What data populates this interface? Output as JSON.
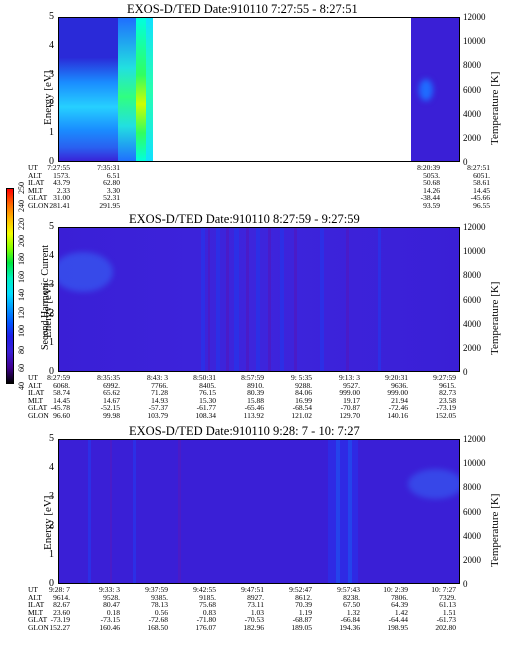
{
  "colorbar": {
    "label": "Second Harmonic Current",
    "ticks": [
      "40",
      "60",
      "80",
      "100",
      "120",
      "140",
      "160",
      "180",
      "200",
      "220",
      "240",
      "250"
    ]
  },
  "chart_data": [
    {
      "type": "heatmap",
      "title": "EXOS-D/TED   Date:910110  7:27:55 - 8:27:51",
      "ylabel": "Energy [eV]",
      "y2label": "Temperature [K]",
      "ylim": [
        0,
        5
      ],
      "y2lim": [
        0,
        12000
      ],
      "yticks": [
        "0",
        "1",
        "2",
        "3",
        "4",
        "5"
      ],
      "y2ticks": [
        "0",
        "2000",
        "4000",
        "6000",
        "8000",
        "10000",
        "12000"
      ],
      "ephemeris": {
        "labels": [
          "UT",
          "ALT",
          "ILAT",
          "MLT",
          "GLAT",
          "GLON"
        ],
        "columns": [
          [
            "7:27:55",
            "1573.",
            "43.79",
            "2.33",
            "31.00",
            "281.41"
          ],
          [
            "7:35:31",
            "6.51",
            "62.80",
            "3.30",
            "52.31",
            "291.95"
          ],
          [
            "8:20:39",
            "5053.",
            "50.68",
            "14.26",
            "-38.44",
            "93.59"
          ],
          [
            "8:27:51",
            "6051.",
            "58.61",
            "14.45",
            "-45.66",
            "96.55"
          ]
        ]
      }
    },
    {
      "type": "heatmap",
      "title": "EXOS-D/TED   Date:910110  8:27:59 - 9:27:59",
      "ylabel": "Energy [eV]",
      "y2label": "Temperature [K]",
      "ylim": [
        0,
        5
      ],
      "y2lim": [
        0,
        12000
      ],
      "yticks": [
        "0",
        "1",
        "2",
        "3",
        "4",
        "5"
      ],
      "y2ticks": [
        "0",
        "2000",
        "4000",
        "6000",
        "8000",
        "10000",
        "12000"
      ],
      "ephemeris": {
        "labels": [
          "UT",
          "ALT",
          "ILAT",
          "MLT",
          "GLAT",
          "GLON"
        ],
        "columns": [
          [
            "8:27:59",
            "6068.",
            "58.74",
            "14.45",
            "-45.78",
            "96.60"
          ],
          [
            "8:35:35",
            "6992.",
            "65.62",
            "14.67",
            "-52.15",
            "99.98"
          ],
          [
            "8:43: 3",
            "7766.",
            "71.28",
            "14.93",
            "-57.37",
            "103.79"
          ],
          [
            "8:50:31",
            "8405.",
            "76.15",
            "15.30",
            "-61.77",
            "108.34"
          ],
          [
            "8:57:59",
            "8910.",
            "80.39",
            "15.88",
            "-65.46",
            "113.92"
          ],
          [
            "9: 5:35",
            "9288.",
            "84.06",
            "16.99",
            "-68.54",
            "121.02"
          ],
          [
            "9:13: 3",
            "9527.",
            "999.00",
            "19.17",
            "-70.87",
            "129.70"
          ],
          [
            "9:20:31",
            "9636.",
            "999.00",
            "21.94",
            "-72.46",
            "140.16"
          ],
          [
            "9:27:59",
            "9615.",
            "82.73",
            "23.58",
            "-73.19",
            "152.05"
          ]
        ]
      }
    },
    {
      "type": "heatmap",
      "title": "EXOS-D/TED   Date:910110  9:28: 7 - 10: 7:27",
      "ylabel": "Energy [eV]",
      "y2label": "Temperature [K]",
      "ylim": [
        0,
        5
      ],
      "y2lim": [
        0,
        12000
      ],
      "yticks": [
        "0",
        "1",
        "2",
        "3",
        "4",
        "5"
      ],
      "y2ticks": [
        "0",
        "2000",
        "4000",
        "6000",
        "8000",
        "10000",
        "12000"
      ],
      "ephemeris": {
        "labels": [
          "UT",
          "ALT",
          "ILAT",
          "MLT",
          "GLAT",
          "GLON"
        ],
        "columns": [
          [
            "9:28: 7",
            "9614.",
            "82.67",
            "23.60",
            "-73.19",
            "152.27"
          ],
          [
            "9:33: 3",
            "9528.",
            "80.47",
            "0.18",
            "-73.15",
            "160.46"
          ],
          [
            "9:37:59",
            "9385.",
            "78.13",
            "0.56",
            "-72.68",
            "168.50"
          ],
          [
            "9:42:55",
            "9185.",
            "75.68",
            "0.83",
            "-71.80",
            "176.07"
          ],
          [
            "9:47:51",
            "8927.",
            "73.11",
            "1.03",
            "-70.53",
            "182.96"
          ],
          [
            "9:52:47",
            "8612.",
            "70.39",
            "1.19",
            "-68.87",
            "189.05"
          ],
          [
            "9:57:43",
            "8238.",
            "67.50",
            "1.32",
            "-66.84",
            "194.36"
          ],
          [
            "10: 2:39",
            "7806.",
            "64.39",
            "1.42",
            "-64.44",
            "198.95"
          ],
          [
            "10: 7:27",
            "7329.",
            "61.13",
            "1.51",
            "-61.73",
            "202.80"
          ]
        ]
      }
    }
  ]
}
